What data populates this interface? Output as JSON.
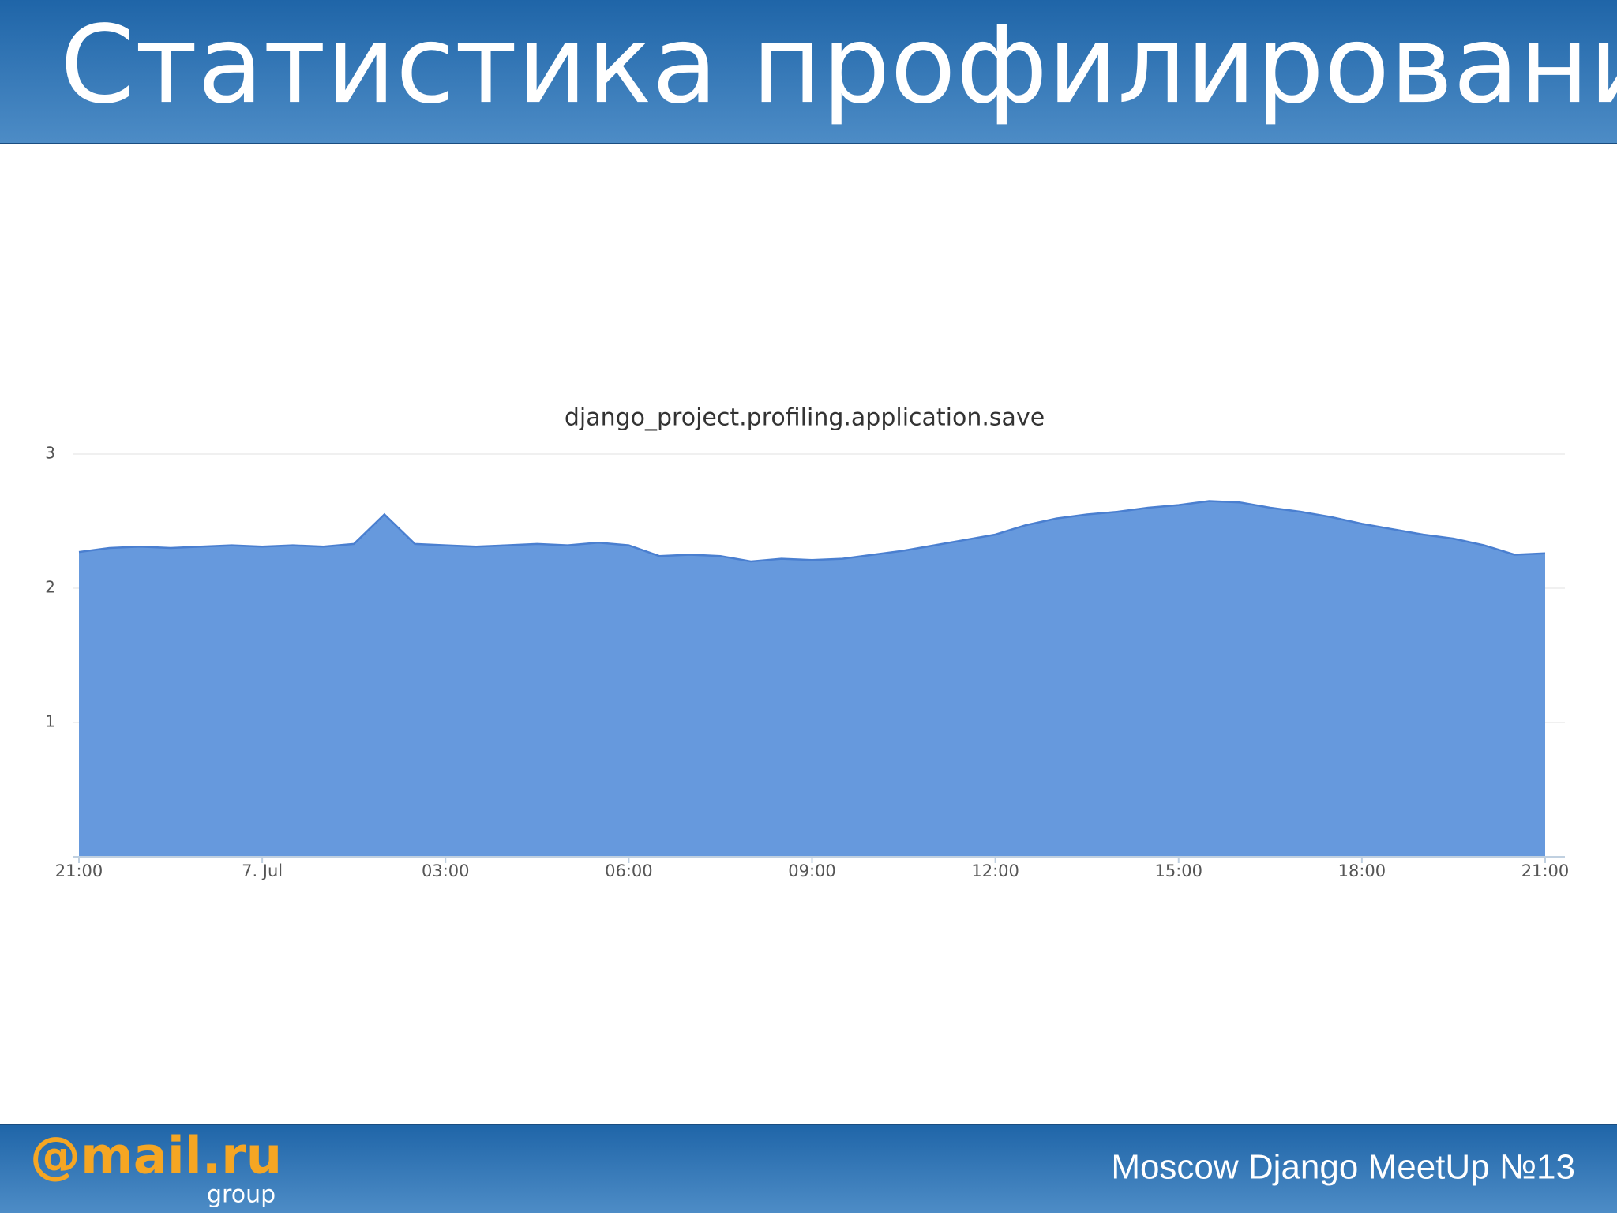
{
  "header": {
    "title": "Статистика профилирования"
  },
  "chart_data": {
    "type": "area",
    "title": "django_project.profiling.application.save",
    "x": [
      21,
      21.5,
      22,
      22.5,
      23,
      23.5,
      24,
      24.5,
      25,
      25.5,
      26,
      26.5,
      27,
      27.5,
      28,
      28.5,
      29,
      29.5,
      30,
      30.5,
      31,
      31.5,
      32,
      32.5,
      33,
      33.5,
      34,
      34.5,
      35,
      35.5,
      36,
      36.5,
      37,
      37.5,
      38,
      38.5,
      39,
      39.5,
      40,
      40.5,
      41,
      41.5,
      42,
      42.5,
      43,
      43.5,
      44,
      44.5,
      45
    ],
    "values": [
      2.27,
      2.3,
      2.31,
      2.3,
      2.31,
      2.32,
      2.31,
      2.32,
      2.31,
      2.33,
      2.55,
      2.33,
      2.32,
      2.31,
      2.32,
      2.33,
      2.32,
      2.34,
      2.32,
      2.24,
      2.25,
      2.24,
      2.2,
      2.22,
      2.21,
      2.22,
      2.25,
      2.28,
      2.32,
      2.36,
      2.4,
      2.47,
      2.52,
      2.55,
      2.57,
      2.6,
      2.62,
      2.65,
      2.64,
      2.6,
      2.57,
      2.53,
      2.48,
      2.44,
      2.4,
      2.37,
      2.32,
      2.25,
      2.26
    ],
    "color": "#6699dd",
    "line_color": "#4a7fd0",
    "xlim": [
      21,
      45
    ],
    "xticks": [
      {
        "value": 21,
        "label": "21:00"
      },
      {
        "value": 24,
        "label": "7. Jul"
      },
      {
        "value": 27,
        "label": "03:00"
      },
      {
        "value": 30,
        "label": "06:00"
      },
      {
        "value": 33,
        "label": "09:00"
      },
      {
        "value": 36,
        "label": "12:00"
      },
      {
        "value": 39,
        "label": "15:00"
      },
      {
        "value": 42,
        "label": "18:00"
      },
      {
        "value": 45,
        "label": "21:00"
      }
    ],
    "ylim": [
      0,
      3
    ],
    "yticks": [
      1,
      2,
      3
    ],
    "grid": true
  },
  "footer": {
    "logo": "@mail.ru",
    "logo_sub": "group",
    "text": "Moscow Django MeetUp №13"
  }
}
